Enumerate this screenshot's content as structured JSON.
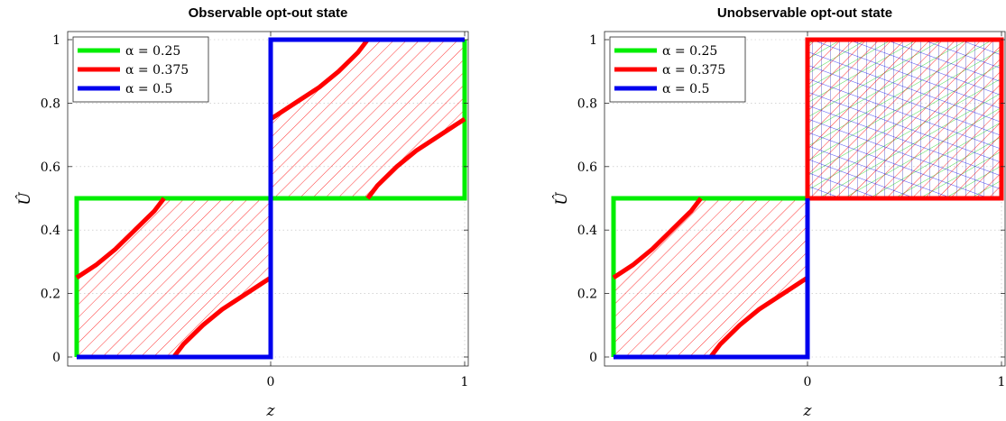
{
  "chart_data": [
    {
      "type": "line",
      "title": "Observable opt-out state",
      "xlabel": "z",
      "ylabel": "Û",
      "xlim": [
        -1,
        1
      ],
      "ylim": [
        0,
        1
      ],
      "xticks": [
        0,
        1
      ],
      "xtick_labels": [
        "0",
        "1"
      ],
      "yticks": [
        0,
        0.2,
        0.4,
        0.6,
        0.8,
        1
      ],
      "ytick_labels": [
        "0",
        "0.2",
        "0.4",
        "0.6",
        "0.8",
        "1"
      ],
      "legend_position": "top-left",
      "series": [
        {
          "name": "α = 0.25",
          "color": "#00ee00",
          "segments": [
            [
              [
                -1,
                0
              ],
              [
                -1,
                0.5
              ],
              [
                1,
                0.5
              ],
              [
                1,
                1
              ]
            ]
          ]
        },
        {
          "name": "α = 0.375",
          "color": "#ff0000",
          "hatched": true,
          "segments": [
            [
              [
                -1,
                0.25
              ],
              [
                -0.9,
                0.29
              ],
              [
                -0.8,
                0.34
              ],
              [
                -0.7,
                0.4
              ],
              [
                -0.6,
                0.46
              ],
              [
                -0.55,
                0.5
              ]
            ],
            [
              [
                -0.5,
                0
              ],
              [
                -0.45,
                0.04
              ],
              [
                -0.35,
                0.1
              ],
              [
                -0.25,
                0.15
              ],
              [
                -0.15,
                0.19
              ],
              [
                -0.05,
                0.23
              ],
              [
                0,
                0.25
              ]
            ],
            [
              [
                0,
                0.75
              ],
              [
                0.05,
                0.77
              ],
              [
                0.15,
                0.81
              ],
              [
                0.25,
                0.85
              ],
              [
                0.35,
                0.9
              ],
              [
                0.45,
                0.96
              ],
              [
                0.5,
                1
              ]
            ],
            [
              [
                0.5,
                0.5
              ],
              [
                0.55,
                0.54
              ],
              [
                0.65,
                0.6
              ],
              [
                0.75,
                0.65
              ],
              [
                0.85,
                0.69
              ],
              [
                0.95,
                0.73
              ],
              [
                1,
                0.75
              ]
            ]
          ]
        },
        {
          "name": "α = 0.5",
          "color": "#0000ee",
          "segments": [
            [
              [
                -1,
                0
              ],
              [
                0,
                0
              ],
              [
                0,
                1
              ],
              [
                1,
                1
              ]
            ]
          ]
        }
      ],
      "hatch_regions": [
        [
          [
            -1,
            0.25
          ],
          [
            -0.9,
            0.29
          ],
          [
            -0.8,
            0.34
          ],
          [
            -0.7,
            0.4
          ],
          [
            -0.6,
            0.46
          ],
          [
            -0.55,
            0.5
          ],
          [
            0,
            0.5
          ],
          [
            0,
            0.25
          ],
          [
            -0.05,
            0.23
          ],
          [
            -0.15,
            0.19
          ],
          [
            -0.25,
            0.15
          ],
          [
            -0.35,
            0.1
          ],
          [
            -0.45,
            0.04
          ],
          [
            -0.5,
            0
          ],
          [
            -1,
            0
          ]
        ],
        [
          [
            0,
            0.75
          ],
          [
            0.05,
            0.77
          ],
          [
            0.15,
            0.81
          ],
          [
            0.25,
            0.85
          ],
          [
            0.35,
            0.9
          ],
          [
            0.45,
            0.96
          ],
          [
            0.5,
            1
          ],
          [
            1,
            1
          ],
          [
            1,
            0.75
          ],
          [
            0.95,
            0.73
          ],
          [
            0.85,
            0.69
          ],
          [
            0.75,
            0.65
          ],
          [
            0.65,
            0.6
          ],
          [
            0.55,
            0.54
          ],
          [
            0.5,
            0.5
          ],
          [
            0,
            0.5
          ]
        ]
      ]
    },
    {
      "type": "line",
      "title": "Unobservable opt-out state",
      "xlabel": "z",
      "ylabel": "Û",
      "xlim": [
        -1,
        1
      ],
      "ylim": [
        0,
        1
      ],
      "xticks": [
        0,
        1
      ],
      "xtick_labels": [
        "0",
        "1"
      ],
      "yticks": [
        0,
        0.2,
        0.4,
        0.6,
        0.8,
        1
      ],
      "ytick_labels": [
        "0",
        "0.2",
        "0.4",
        "0.6",
        "0.8",
        "1"
      ],
      "legend_position": "top-left",
      "series": [
        {
          "name": "α = 0.25",
          "color": "#00ee00",
          "segments": [
            [
              [
                -1,
                0
              ],
              [
                -1,
                0.5
              ],
              [
                0,
                0.5
              ]
            ],
            [
              [
                1,
                0.5
              ],
              [
                1,
                1
              ]
            ]
          ]
        },
        {
          "name": "α = 0.375",
          "color": "#ff0000",
          "hatched": true,
          "segments": [
            [
              [
                -1,
                0.25
              ],
              [
                -0.9,
                0.29
              ],
              [
                -0.8,
                0.34
              ],
              [
                -0.7,
                0.4
              ],
              [
                -0.6,
                0.46
              ],
              [
                -0.55,
                0.5
              ]
            ],
            [
              [
                -0.5,
                0
              ],
              [
                -0.45,
                0.04
              ],
              [
                -0.35,
                0.1
              ],
              [
                -0.25,
                0.15
              ],
              [
                -0.15,
                0.19
              ],
              [
                -0.05,
                0.23
              ],
              [
                0,
                0.25
              ]
            ],
            [
              [
                0,
                0.5
              ],
              [
                0,
                1
              ],
              [
                1,
                1
              ],
              [
                1,
                0.5
              ],
              [
                0,
                0.5
              ]
            ]
          ]
        },
        {
          "name": "α = 0.5",
          "color": "#0000ee",
          "segments": [
            [
              [
                -1,
                0
              ],
              [
                0,
                0
              ],
              [
                0,
                0.5
              ]
            ]
          ]
        }
      ],
      "hatch_regions": [
        [
          [
            -1,
            0.25
          ],
          [
            -0.9,
            0.29
          ],
          [
            -0.8,
            0.34
          ],
          [
            -0.7,
            0.4
          ],
          [
            -0.6,
            0.46
          ],
          [
            -0.55,
            0.5
          ],
          [
            0,
            0.5
          ],
          [
            0,
            0.25
          ],
          [
            -0.05,
            0.23
          ],
          [
            -0.15,
            0.19
          ],
          [
            -0.25,
            0.15
          ],
          [
            -0.35,
            0.1
          ],
          [
            -0.45,
            0.04
          ],
          [
            -0.5,
            0
          ],
          [
            -1,
            0
          ]
        ]
      ],
      "crosshatch_region": [
        [
          0,
          0.5
        ],
        [
          0,
          1
        ],
        [
          1,
          1
        ],
        [
          1,
          0.5
        ]
      ]
    }
  ]
}
